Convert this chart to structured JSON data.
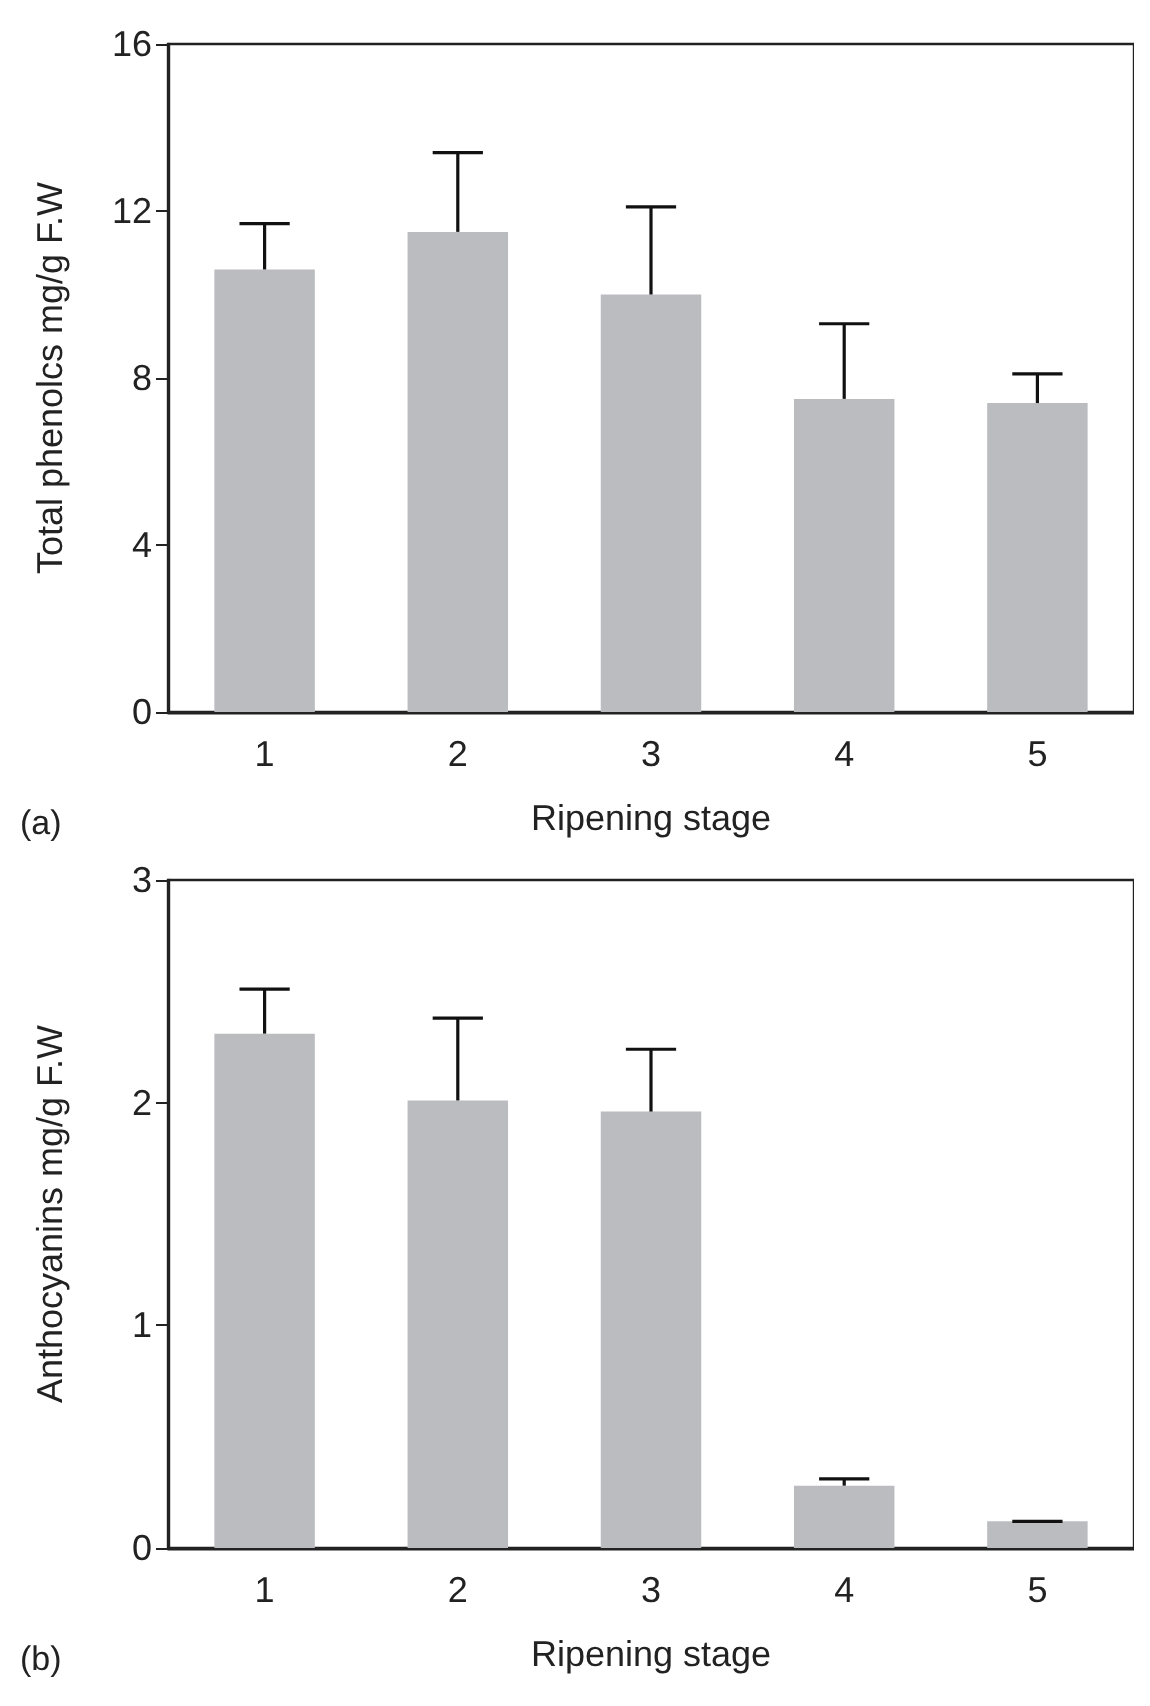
{
  "chart_data": [
    {
      "type": "bar",
      "xlabel": "Ripening stage",
      "ylabel": "Total phenolcs mg/g F.W",
      "categories": [
        "1",
        "2",
        "3",
        "4",
        "5"
      ],
      "values": [
        10.6,
        11.5,
        10.0,
        7.5,
        7.4
      ],
      "color": "#bbbcc0",
      "errors": [
        [
          10.6,
          11.7
        ],
        [
          11.5,
          13.4
        ],
        [
          10.0,
          12.1
        ],
        [
          7.5,
          9.3
        ],
        [
          7.4,
          8.1
        ]
      ],
      "ylim": [
        0,
        16
      ],
      "yticks": [
        0,
        4,
        8,
        12,
        16
      ],
      "annotations": [
        "(a)"
      ]
    },
    {
      "type": "bar",
      "xlabel": "Ripening stage",
      "ylabel": "Anthocyanins mg/g F.W",
      "categories": [
        "1",
        "2",
        "3",
        "4",
        "5"
      ],
      "values": [
        2.31,
        2.01,
        1.96,
        0.28,
        0.12
      ],
      "color": "#bbbcc0",
      "errors": [
        [
          2.31,
          2.51
        ],
        [
          2.01,
          2.38
        ],
        [
          1.96,
          2.24
        ],
        [
          0.28,
          0.31
        ],
        [
          0.12,
          0.12
        ]
      ],
      "ylim": [
        0,
        3
      ],
      "yticks": [
        0,
        1,
        2,
        3
      ],
      "annotations": [
        "(b)"
      ]
    }
  ]
}
